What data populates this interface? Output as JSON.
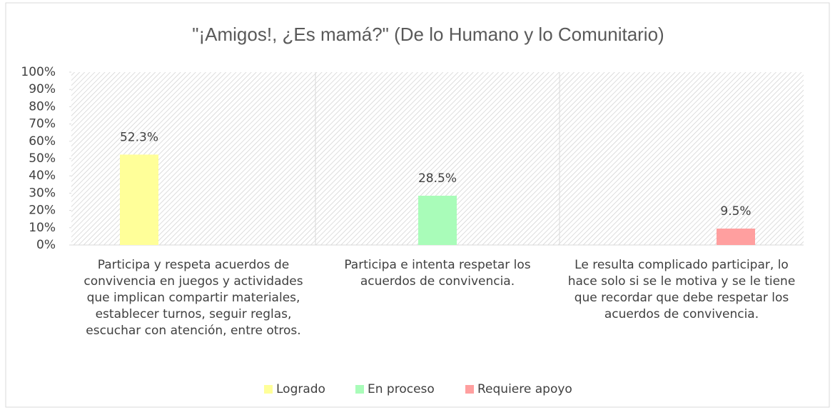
{
  "chart_data": {
    "type": "bar",
    "title": "\"¡Amigos!, ¿Es mamá?\" (De lo Humano y lo Comunitario)",
    "categories": [
      "Participa y respeta acuerdos de convivencia en juegos y actividades que implican compartir materiales, establecer turnos, seguir reglas, escuchar con atención, entre otros.",
      "Participa e intenta respetar los acuerdos de convivencia.",
      "Le resulta complicado participar, lo hace solo si se le motiva y se le tiene que recordar que debe respetar los acuerdos de convivencia."
    ],
    "series": [
      {
        "name": "Logrado",
        "color": "#ffff99",
        "values": [
          52.3,
          null,
          null
        ],
        "value_labels": [
          "52.3%",
          null,
          null
        ]
      },
      {
        "name": "En proceso",
        "color": "#a9fcb9",
        "values": [
          null,
          28.5,
          null
        ],
        "value_labels": [
          null,
          "28.5%",
          null
        ]
      },
      {
        "name": "Requiere apoyo",
        "color": "#ff9f9f",
        "values": [
          null,
          null,
          9.5
        ],
        "value_labels": [
          null,
          null,
          "9.5%"
        ]
      }
    ],
    "ylim": [
      0,
      100
    ],
    "yticks": [
      {
        "value": 0,
        "label": "0%"
      },
      {
        "value": 10,
        "label": "10%"
      },
      {
        "value": 20,
        "label": "20%"
      },
      {
        "value": 30,
        "label": "30%"
      },
      {
        "value": 40,
        "label": "40%"
      },
      {
        "value": 50,
        "label": "50%"
      },
      {
        "value": 60,
        "label": "60%"
      },
      {
        "value": 70,
        "label": "70%"
      },
      {
        "value": 80,
        "label": "80%"
      },
      {
        "value": 90,
        "label": "90%"
      },
      {
        "value": 100,
        "label": "100%"
      }
    ],
    "legend": "bottom"
  }
}
